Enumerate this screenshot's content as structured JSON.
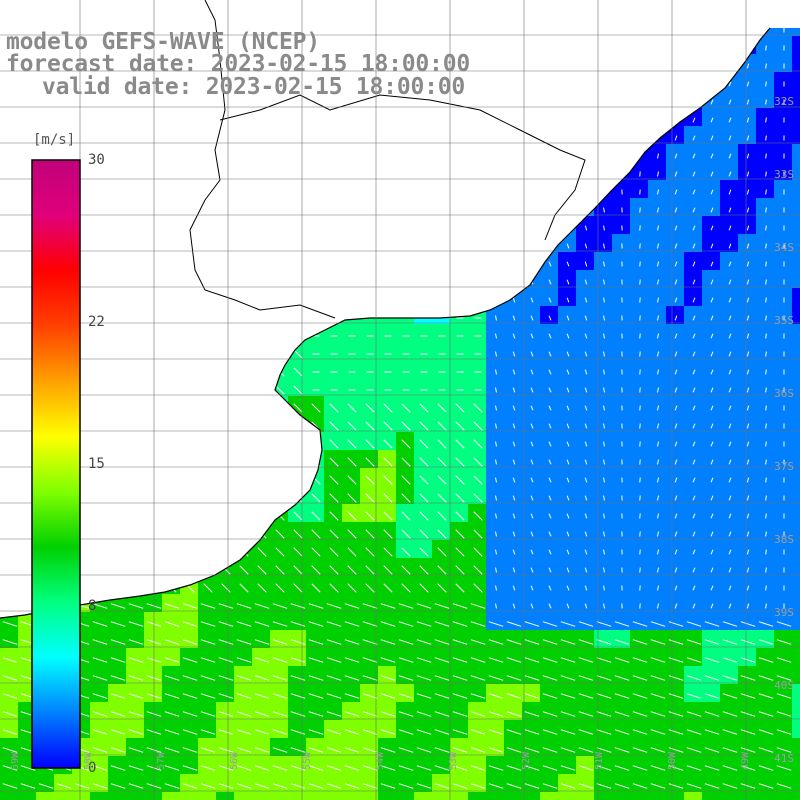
{
  "title": {
    "line1": "modelo GEFS-WAVE (NCEP)",
    "line2": "forecast date: 2023-02-15 18:00:00",
    "line3": "valid date: 2023-02-15 18:00:00"
  },
  "colorbar": {
    "units": "[m/s]",
    "ticks": [
      {
        "label": "30",
        "value": 30
      },
      {
        "label": "22",
        "value": 22
      },
      {
        "label": "15",
        "value": 15
      },
      {
        "label": "8",
        "value": 8
      },
      {
        "label": "0",
        "value": 0
      }
    ],
    "colors": [
      "#0000ff",
      "#0080ff",
      "#00ffff",
      "#00ff80",
      "#00d000",
      "#80ff00",
      "#ffff00",
      "#ffa000",
      "#ff4000",
      "#ff0000",
      "#e0007a",
      "#c0007a"
    ]
  },
  "lat_labels": [
    "32S",
    "33S",
    "34S",
    "35S",
    "36S",
    "37S",
    "38S",
    "39S",
    "40S",
    "41S"
  ],
  "lon_labels": [
    "59W",
    "58W",
    "57W",
    "56W",
    "55W",
    "54W",
    "53W",
    "52W",
    "51W",
    "50W",
    "49W"
  ]
}
